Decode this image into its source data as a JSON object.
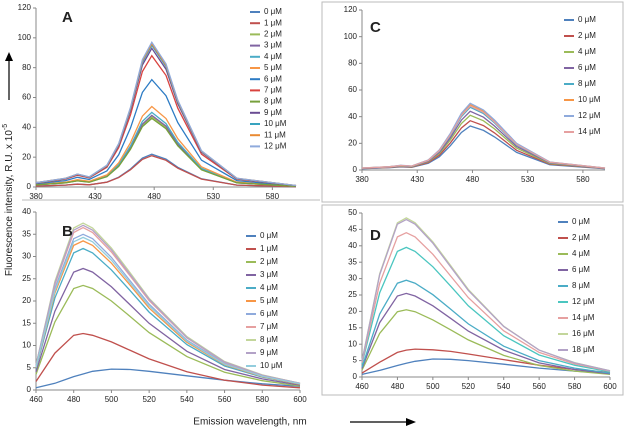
{
  "figure": {
    "y_label": "Fluorescence intensity, R.U. x 10",
    "y_label_superscript": "-5",
    "x_label": "Emission wavelength, nm"
  },
  "chart_data": [
    {
      "type": "line",
      "title": "A",
      "xlim": [
        380,
        600
      ],
      "xticks": [
        380,
        430,
        480,
        530,
        580
      ],
      "ylim": [
        0,
        120
      ],
      "yticks": [
        0,
        20,
        40,
        60,
        80,
        100,
        120
      ],
      "x": [
        380,
        405,
        415,
        425,
        440,
        450,
        460,
        470,
        478,
        490,
        500,
        520,
        550,
        600
      ],
      "series": [
        {
          "name": "0 μM",
          "color": "#4F81BD",
          "values": [
            0.7,
            1.3,
            2,
            1.5,
            3.3,
            6.6,
            12.1,
            19.4,
            22,
            18.7,
            13.2,
            5.5,
            1.3,
            0.2
          ]
        },
        {
          "name": "1 μM",
          "color": "#C0504D",
          "values": [
            0.6,
            1.3,
            1.9,
            1.5,
            3.2,
            6.3,
            11.6,
            18.5,
            21,
            17.9,
            12.6,
            5.3,
            1.3,
            0.2
          ]
        },
        {
          "name": "2 μM",
          "color": "#9BBB59",
          "values": [
            1.4,
            2.8,
            4.2,
            3.3,
            7.1,
            14.1,
            25.9,
            41.4,
            47,
            40,
            28.2,
            11.8,
            2.8,
            0.5
          ]
        },
        {
          "name": "3 μM",
          "color": "#8064A2",
          "values": [
            1.4,
            2.9,
            4.3,
            3.4,
            7.2,
            14.4,
            26.4,
            42.2,
            48,
            40.8,
            28.8,
            12,
            2.9,
            0.5
          ]
        },
        {
          "name": "4 μM",
          "color": "#4BACC6",
          "values": [
            1.5,
            3,
            4.5,
            3.5,
            7.5,
            15,
            27.5,
            44,
            50,
            42.5,
            30,
            12.5,
            3,
            0.5
          ]
        },
        {
          "name": "5 μM",
          "color": "#F79646",
          "values": [
            1.6,
            3.2,
            4.9,
            3.8,
            8.1,
            16.2,
            29.7,
            47.5,
            54,
            45.9,
            32.4,
            13.5,
            3.2,
            0.5
          ]
        },
        {
          "name": "6 μM",
          "color": "#2C7BC4",
          "values": [
            2.2,
            4.3,
            6.5,
            5,
            10.8,
            21.6,
            39.6,
            63.4,
            72,
            61.2,
            43.2,
            18,
            4.3,
            0.7
          ]
        },
        {
          "name": "7 μM",
          "color": "#D9433F",
          "values": [
            2.6,
            5.3,
            7.9,
            6.2,
            13.2,
            26.4,
            48.4,
            77.4,
            88,
            74.8,
            52.8,
            22,
            5.3,
            0.9
          ]
        },
        {
          "name": "8 μM",
          "color": "#77A03C",
          "values": [
            1.4,
            2.8,
            4.1,
            3.2,
            6.9,
            13.8,
            25.3,
            40.5,
            46,
            39.1,
            27.6,
            11.5,
            2.8,
            0.5
          ]
        },
        {
          "name": "9 μM",
          "color": "#6A4C93",
          "values": [
            2.8,
            5.6,
            8.4,
            6.5,
            14,
            27.9,
            51.2,
            81.8,
            93,
            79,
            55.8,
            23.3,
            5.6,
            0.9
          ]
        },
        {
          "name": "10 μM",
          "color": "#38A3BF",
          "values": [
            2.9,
            5.7,
            8.6,
            6.7,
            14.3,
            28.5,
            52.3,
            83.6,
            95,
            80.8,
            57,
            23.8,
            5.7,
            1
          ]
        },
        {
          "name": "11 μM",
          "color": "#E98A33",
          "values": [
            2.9,
            5.8,
            8.6,
            6.7,
            14.4,
            28.8,
            52.8,
            84.5,
            96,
            81.6,
            57.6,
            24,
            5.8,
            1
          ]
        },
        {
          "name": "12 μM",
          "color": "#8FAADC",
          "values": [
            2.9,
            5.8,
            8.7,
            6.8,
            14.6,
            29.1,
            53.4,
            85.4,
            97,
            82.5,
            58.2,
            24.3,
            5.8,
            1
          ]
        }
      ]
    },
    {
      "type": "line",
      "title": "C",
      "xlim": [
        380,
        600
      ],
      "xticks": [
        380,
        430,
        480,
        530,
        580
      ],
      "ylim": [
        0,
        120
      ],
      "yticks": [
        0,
        20,
        40,
        60,
        80,
        100,
        120
      ],
      "x": [
        380,
        405,
        415,
        425,
        440,
        450,
        460,
        470,
        478,
        490,
        500,
        520,
        550,
        600
      ],
      "series": [
        {
          "name": "0 μM",
          "color": "#4F81BD",
          "values": [
            1,
            1.7,
            2.3,
            2,
            5,
            9.9,
            18.2,
            28.1,
            33,
            29.7,
            24.8,
            13.2,
            4,
            1
          ]
        },
        {
          "name": "2 μM",
          "color": "#C0504D",
          "values": [
            1.1,
            1.9,
            2.6,
            2.2,
            5.6,
            11.1,
            20.4,
            31.5,
            37,
            33.3,
            27.8,
            14.8,
            4.4,
            1.1
          ]
        },
        {
          "name": "4 μM",
          "color": "#9BBB59",
          "values": [
            1.2,
            2.1,
            2.9,
            2.5,
            6.2,
            12.3,
            22.6,
            34.9,
            41,
            36.9,
            30.8,
            16.4,
            4.9,
            1.2
          ]
        },
        {
          "name": "6 μM",
          "color": "#8064A2",
          "values": [
            1.3,
            2.2,
            3.1,
            2.6,
            6.6,
            13.2,
            24.2,
            37.4,
            44,
            39.6,
            33,
            17.6,
            5.3,
            1.3
          ]
        },
        {
          "name": "8 μM",
          "color": "#4BACC6",
          "values": [
            1.4,
            2.4,
            3.3,
            2.8,
            7.1,
            14.1,
            25.9,
            40,
            47,
            42.3,
            35.3,
            18.8,
            5.6,
            1.4
          ]
        },
        {
          "name": "10 μM",
          "color": "#F79646",
          "values": [
            1.5,
            2.5,
            3.4,
            2.9,
            7.4,
            14.7,
            27,
            41.7,
            49,
            44.1,
            36.8,
            19.6,
            5.9,
            1.5
          ]
        },
        {
          "name": "12 μM",
          "color": "#8FAADC",
          "values": [
            1.5,
            2.5,
            3.5,
            3,
            7.5,
            15,
            27.5,
            42.5,
            50,
            45,
            37.5,
            20,
            6,
            1.5
          ]
        },
        {
          "name": "14 μM",
          "color": "#E6A0A0",
          "values": [
            1.4,
            2.4,
            3.4,
            2.9,
            7.2,
            14.4,
            26.4,
            40.8,
            48,
            43.2,
            36,
            19.2,
            5.8,
            1.4
          ]
        }
      ]
    },
    {
      "type": "line",
      "title": "B",
      "xlim": [
        460,
        600
      ],
      "xticks": [
        460,
        480,
        500,
        520,
        540,
        560,
        580,
        600
      ],
      "ylim": [
        0,
        40
      ],
      "yticks": [
        0,
        5,
        10,
        15,
        20,
        25,
        30,
        35,
        40
      ],
      "x": [
        460,
        470,
        480,
        485,
        490,
        500,
        510,
        520,
        540,
        560,
        580,
        600
      ],
      "series": [
        {
          "name": "0 μM",
          "color": "#4F81BD",
          "values": [
            0.5,
            1.5,
            3,
            3.6,
            4.2,
            4.7,
            4.6,
            4.2,
            3.2,
            2.2,
            1.4,
            0.8
          ]
        },
        {
          "name": "1 μM",
          "color": "#C0504D",
          "values": [
            1.9,
            8.3,
            12.3,
            12.7,
            12.3,
            10.8,
            8.9,
            7,
            4.1,
            2.2,
            1.1,
            0.5
          ]
        },
        {
          "name": "2 μM",
          "color": "#9BBB59",
          "values": [
            3.5,
            15.3,
            22.8,
            23.5,
            22.8,
            20,
            16.5,
            12.9,
            7.5,
            4,
            2.1,
            0.9
          ]
        },
        {
          "name": "3 μM",
          "color": "#8064A2",
          "values": [
            4.1,
            17.7,
            26.5,
            27.3,
            26.5,
            23.2,
            19.1,
            15,
            8.7,
            4.6,
            2.5,
            1.1
          ]
        },
        {
          "name": "4 μM",
          "color": "#4BACC6",
          "values": [
            4.8,
            20.7,
            30.8,
            31.8,
            30.8,
            27,
            22.3,
            17.5,
            10.2,
            5.4,
            2.9,
            1.3
          ]
        },
        {
          "name": "5 μM",
          "color": "#F79646",
          "values": [
            5,
            21.8,
            32.5,
            33.5,
            32.5,
            28.5,
            23.5,
            18.4,
            10.7,
            5.7,
            3,
            1.3
          ]
        },
        {
          "name": "6 μM",
          "color": "#8FAADC",
          "values": [
            5.3,
            22.8,
            34,
            35,
            34,
            29.8,
            24.5,
            19.3,
            11.2,
            6,
            3.2,
            1.4
          ]
        },
        {
          "name": "7 μM",
          "color": "#E6A0A0",
          "values": [
            5.5,
            23.7,
            35.4,
            36.5,
            35.4,
            31,
            25.6,
            20.1,
            11.7,
            6.2,
            3.3,
            1.5
          ]
        },
        {
          "name": "8 μM",
          "color": "#C3D69B",
          "values": [
            5.6,
            24.4,
            36.4,
            37.5,
            36.4,
            31.9,
            26.3,
            20.6,
            12,
            6.4,
            3.4,
            1.5
          ]
        },
        {
          "name": "9 μM",
          "color": "#B3A2C7",
          "values": [
            5.6,
            24,
            35.9,
            37,
            35.9,
            31.5,
            25.9,
            20.4,
            11.8,
            6.3,
            3.3,
            1.5
          ]
        },
        {
          "name": "10 μM",
          "color": "#93CDDD",
          "values": [
            5.1,
            22.3,
            33.3,
            34.3,
            33.3,
            29.2,
            24,
            18.9,
            11,
            5.8,
            3.1,
            1.4
          ]
        }
      ]
    },
    {
      "type": "line",
      "title": "D",
      "xlim": [
        460,
        600
      ],
      "xticks": [
        460,
        480,
        500,
        520,
        540,
        560,
        580,
        600
      ],
      "ylim": [
        0,
        50
      ],
      "yticks": [
        0,
        5,
        10,
        15,
        20,
        25,
        30,
        35,
        40,
        45,
        50
      ],
      "x": [
        460,
        470,
        480,
        485,
        490,
        500,
        510,
        520,
        540,
        560,
        580,
        600
      ],
      "series": [
        {
          "name": "0 μM",
          "color": "#4F81BD",
          "values": [
            0.8,
            2,
            3.5,
            4.2,
            4.8,
            5.5,
            5.4,
            5,
            3.9,
            2.7,
            1.8,
            1.1
          ]
        },
        {
          "name": "2 μM",
          "color": "#C0504D",
          "values": [
            1.2,
            4.5,
            7.5,
            8.2,
            8.5,
            8.3,
            7.8,
            7,
            5.3,
            3.6,
            2.3,
            1.4
          ]
        },
        {
          "name": "4 μM",
          "color": "#9BBB59",
          "values": [
            2.1,
            13.3,
            19.9,
            20.5,
            19.9,
            17.4,
            14.4,
            11.3,
            6.6,
            3.5,
            1.8,
            0.8
          ]
        },
        {
          "name": "6 μM",
          "color": "#8064A2",
          "values": [
            2.6,
            16.6,
            24.7,
            25.5,
            24.7,
            21.7,
            17.9,
            14,
            8.2,
            4.3,
            2.3,
            1
          ]
        },
        {
          "name": "8 μM",
          "color": "#4BACC6",
          "values": [
            3,
            19.2,
            28.6,
            29.5,
            28.6,
            25.1,
            20.7,
            16.2,
            9.4,
            5,
            2.7,
            1.2
          ]
        },
        {
          "name": "12 μM",
          "color": "#4BC6C0",
          "values": [
            4,
            25.7,
            38.3,
            39.5,
            38.3,
            33.6,
            27.7,
            21.7,
            12.6,
            6.7,
            3.6,
            1.6
          ]
        },
        {
          "name": "14 μM",
          "color": "#E6A0A0",
          "values": [
            4.4,
            28.6,
            42.7,
            44,
            42.7,
            37.4,
            30.8,
            24.2,
            14.1,
            7.5,
            4,
            1.8
          ]
        },
        {
          "name": "16 μM",
          "color": "#C3D69B",
          "values": [
            4.9,
            31.5,
            47,
            48.5,
            47,
            41.2,
            34,
            26.7,
            15.5,
            8.2,
            4.4,
            1.9
          ]
        },
        {
          "name": "18 μM",
          "color": "#B3A2C7",
          "values": [
            4.8,
            31.2,
            46.6,
            48,
            46.6,
            40.8,
            33.6,
            26.4,
            15.4,
            8.2,
            4.3,
            1.9
          ]
        }
      ]
    }
  ]
}
